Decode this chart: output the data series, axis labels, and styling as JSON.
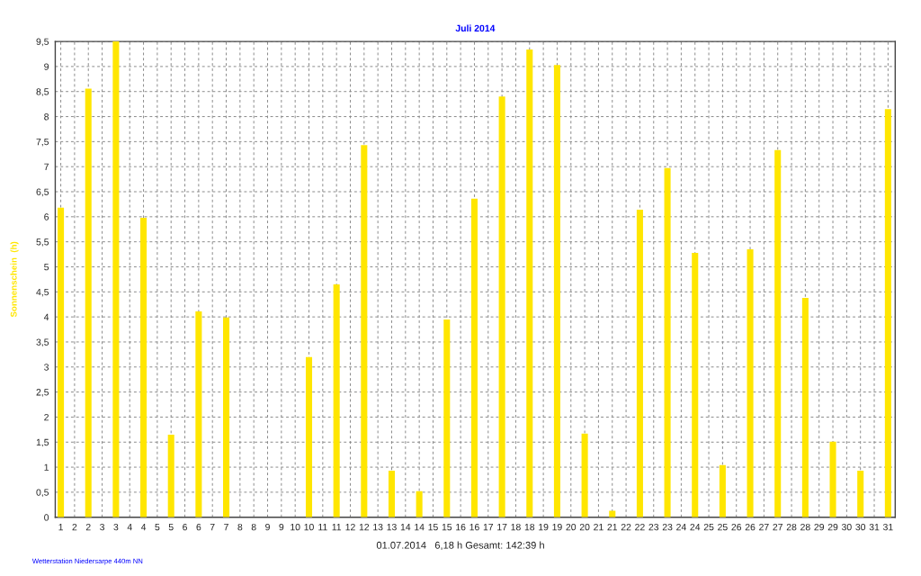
{
  "chart_data": {
    "type": "bar",
    "title": "Juli 2014",
    "ylabel": "Sonnenschein  (h)",
    "annotations": [
      "01.07.2014   6,18 h Gesamt: 142:39 h",
      "Wetterstation Niedersarpe 440m NN"
    ],
    "x": [
      1,
      2,
      3,
      4,
      5,
      6,
      7,
      8,
      9,
      10,
      11,
      12,
      13,
      14,
      15,
      16,
      17,
      18,
      19,
      20,
      21,
      22,
      23,
      24,
      25,
      26,
      27,
      28,
      29,
      30,
      31
    ],
    "values": [
      6.18,
      8.56,
      9.5,
      5.98,
      1.65,
      4.11,
      3.99,
      0,
      0,
      3.2,
      4.65,
      7.43,
      0.93,
      0.52,
      3.95,
      6.36,
      8.4,
      9.34,
      9.03,
      1.67,
      0.13,
      6.14,
      6.97,
      5.28,
      1.04,
      5.35,
      7.33,
      4.38,
      1.51,
      0.93,
      8.15
    ],
    "color": "#ffe600",
    "xlim": [
      0.8,
      31.26
    ],
    "xticks": [
      1,
      {
        "value": 1.5,
        "label": "2"
      },
      2,
      {
        "value": 2.5,
        "label": "3"
      },
      3,
      {
        "value": 3.5,
        "label": "4"
      },
      4,
      {
        "value": 4.5,
        "label": "5"
      },
      5,
      {
        "value": 5.5,
        "label": "6"
      },
      6,
      {
        "value": 6.5,
        "label": "7"
      },
      7,
      {
        "value": 7.5,
        "label": "8"
      },
      8,
      {
        "value": 8.5,
        "label": "9"
      },
      9,
      {
        "value": 9.5,
        "label": "10"
      },
      10,
      {
        "value": 10.5,
        "label": "11"
      },
      11,
      {
        "value": 11.5,
        "label": "12"
      },
      12,
      {
        "value": 12.5,
        "label": "13"
      },
      13,
      {
        "value": 13.5,
        "label": "14"
      },
      14,
      {
        "value": 14.5,
        "label": "15"
      },
      15,
      {
        "value": 15.5,
        "label": "16"
      },
      16,
      {
        "value": 16.5,
        "label": "17"
      },
      17,
      {
        "value": 17.5,
        "label": "18"
      },
      18,
      {
        "value": 18.5,
        "label": "19"
      },
      19,
      {
        "value": 19.5,
        "label": "20"
      },
      20,
      {
        "value": 20.5,
        "label": "21"
      },
      21,
      {
        "value": 21.5,
        "label": "22"
      },
      22,
      {
        "value": 22.5,
        "label": "23"
      },
      23,
      {
        "value": 23.5,
        "label": "24"
      },
      24,
      {
        "value": 24.5,
        "label": "25"
      },
      25,
      {
        "value": 25.5,
        "label": "26"
      },
      26,
      {
        "value": 26.5,
        "label": "27"
      },
      27,
      {
        "value": 27.5,
        "label": "28"
      },
      28,
      {
        "value": 28.5,
        "label": "29"
      },
      29,
      {
        "value": 29.5,
        "label": "30"
      },
      30,
      {
        "value": 30.5,
        "label": "31"
      },
      31
    ],
    "ylim": [
      0,
      9.5
    ],
    "yticks": [
      0,
      {
        "value": 0.5,
        "label": "0,5"
      },
      1,
      {
        "value": 1.5,
        "label": "1,5"
      },
      2,
      {
        "value": 2.5,
        "label": "2,5"
      },
      3,
      {
        "value": 3.5,
        "label": "3,5"
      },
      4,
      {
        "value": 4.5,
        "label": "4,5"
      },
      5,
      {
        "value": 5.5,
        "label": "5,5"
      },
      6,
      {
        "value": 6.5,
        "label": "6,5"
      },
      7,
      {
        "value": 7.5,
        "label": "7,5"
      },
      8,
      {
        "value": 8.5,
        "label": "8,5"
      },
      9,
      {
        "value": 9.5,
        "label": "9,5"
      }
    ],
    "grid": true,
    "legend": false
  }
}
